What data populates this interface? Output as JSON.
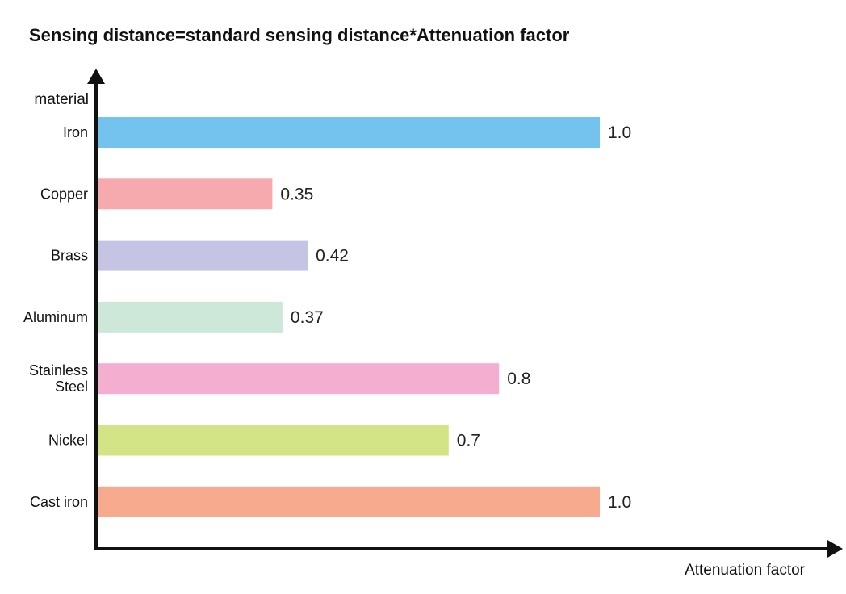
{
  "chart_data": {
    "type": "bar",
    "orientation": "horizontal",
    "title": "Sensing distance=standard sensing distance*Attenuation factor",
    "xlabel": "Attenuation factor",
    "ylabel": "material",
    "xlim": [
      0,
      1.4
    ],
    "grid": false,
    "categories": [
      {
        "lines": [
          "Iron"
        ]
      },
      {
        "lines": [
          "Copper"
        ]
      },
      {
        "lines": [
          "Brass"
        ]
      },
      {
        "lines": [
          "Aluminum"
        ]
      },
      {
        "lines": [
          "Stainless",
          "Steel"
        ]
      },
      {
        "lines": [
          "Nickel"
        ]
      },
      {
        "lines": [
          "Cast iron"
        ]
      }
    ],
    "values": [
      1.0,
      0.35,
      0.42,
      0.37,
      0.8,
      0.7,
      1.0
    ],
    "value_labels": [
      "1.0",
      "0.35",
      "0.42",
      "0.37",
      "0.8",
      "0.7",
      "1.0"
    ],
    "colors": [
      "#74c3ef",
      "#f6aaae",
      "#c6c4e3",
      "#cde7d8",
      "#f3aed0",
      "#d3e487",
      "#f8aa8f"
    ]
  }
}
